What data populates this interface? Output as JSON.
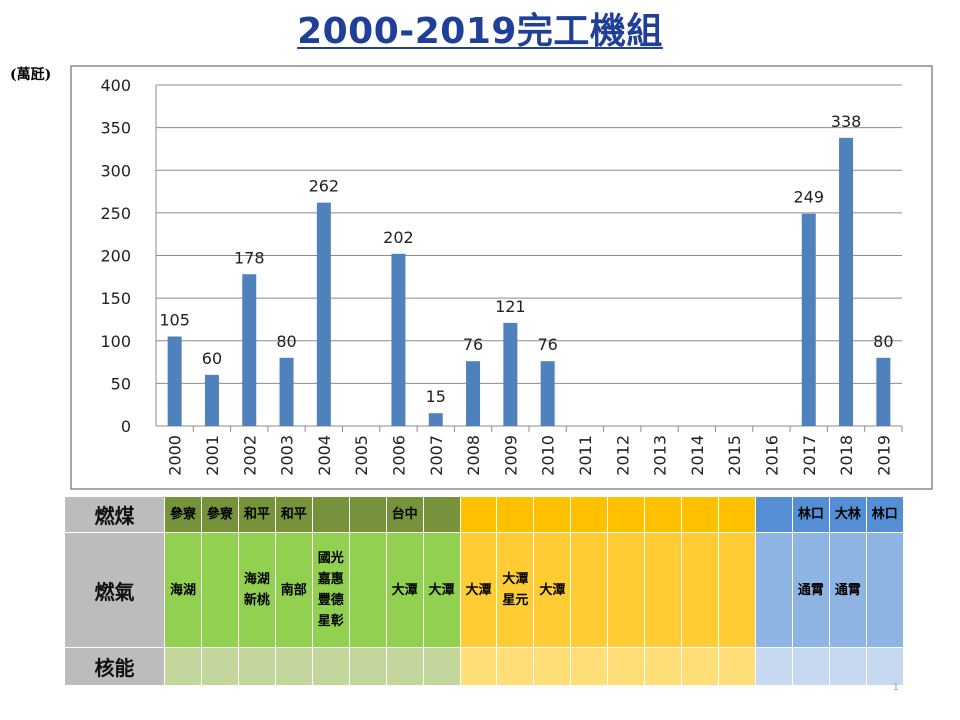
{
  "title": "2000-2019完工機組",
  "unit_label": "(萬瓩)",
  "page_number": "1",
  "chart_data": {
    "type": "bar",
    "title": "2000-2019完工機組",
    "ylabel": "(萬瓩)",
    "xlabel": "",
    "ylim": [
      0,
      400
    ],
    "yticks": [
      0,
      50,
      100,
      150,
      200,
      250,
      300,
      350,
      400
    ],
    "categories": [
      "2000",
      "2001",
      "2002",
      "2003",
      "2004",
      "2005",
      "2006",
      "2007",
      "2008",
      "2009",
      "2010",
      "2011",
      "2012",
      "2013",
      "2014",
      "2015",
      "2016",
      "2017",
      "2018",
      "2019"
    ],
    "values": [
      105,
      60,
      178,
      80,
      262,
      null,
      202,
      15,
      76,
      121,
      76,
      null,
      null,
      null,
      null,
      null,
      null,
      249,
      338,
      80
    ],
    "bar_color": "#4f81bd",
    "grid": true,
    "legend": "none"
  },
  "table": {
    "rows": [
      {
        "label": "燃煤",
        "kind": "coal",
        "cells": [
          [
            "參寮"
          ],
          [
            "參寮"
          ],
          [
            "和平"
          ],
          [
            "和平"
          ],
          [],
          [],
          [
            "台中"
          ],
          [],
          [],
          [],
          [],
          [],
          [],
          [],
          [],
          [],
          [],
          [
            "林口"
          ],
          [
            "大林"
          ],
          [
            "林口"
          ]
        ]
      },
      {
        "label": "燃氣",
        "kind": "gas",
        "cells": [
          [
            "海湖"
          ],
          [],
          [
            "海湖",
            "新桃"
          ],
          [
            "南部"
          ],
          [
            "國光",
            "嘉惠",
            "豐德",
            "星彰"
          ],
          [],
          [
            "大潭"
          ],
          [
            "大潭"
          ],
          [
            "大潭"
          ],
          [
            "大潭",
            "星元"
          ],
          [
            "大潭"
          ],
          [],
          [],
          [],
          [],
          [],
          [],
          [
            "通霄"
          ],
          [
            "通霄"
          ],
          []
        ]
      },
      {
        "label": "核能",
        "kind": "nuc",
        "cells": [
          [],
          [],
          [],
          [],
          [],
          [],
          [],
          [],
          [],
          [],
          [],
          [],
          [],
          [],
          [],
          [],
          [],
          [],
          [],
          []
        ]
      }
    ],
    "period_colors": [
      "g",
      "g",
      "g",
      "g",
      "g",
      "g",
      "g",
      "g",
      "y",
      "y",
      "y",
      "y",
      "y",
      "y",
      "y",
      "y",
      "b",
      "b",
      "b",
      "b"
    ]
  }
}
